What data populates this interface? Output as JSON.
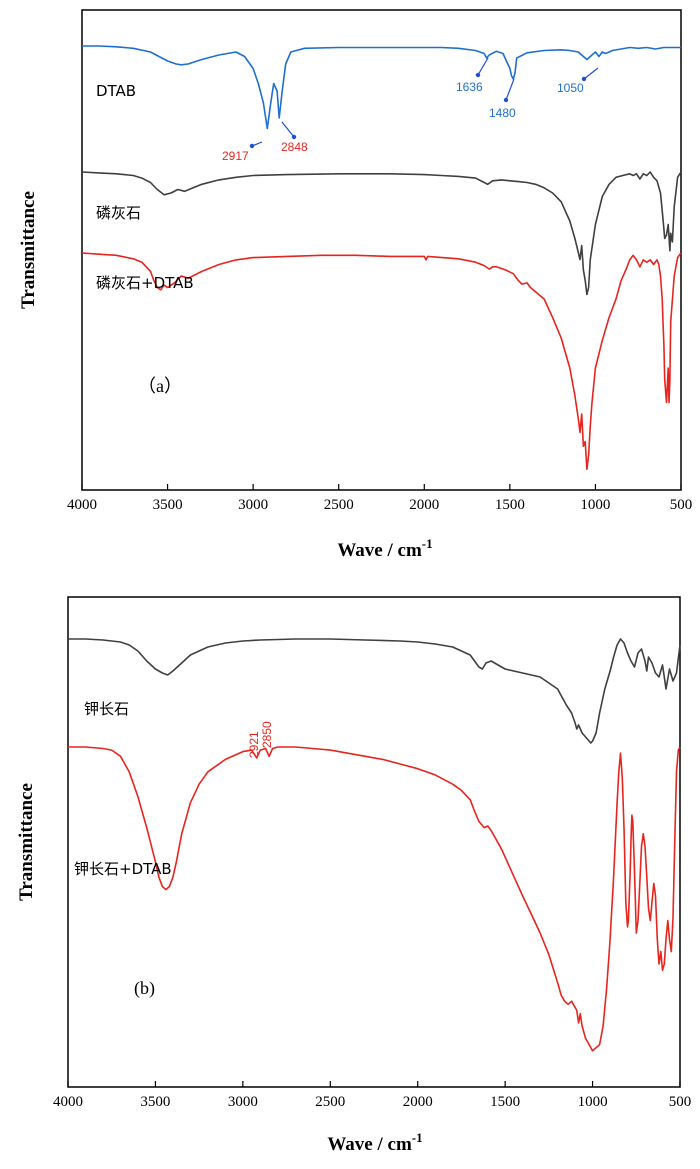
{
  "chart_data": [
    {
      "type": "line",
      "panel_label": "（a）",
      "xlabel": "Wave / cm",
      "xlabel_sup": "-1",
      "ylabel": "Transmittance",
      "xlim": [
        4000,
        500
      ],
      "xticks": [
        4000,
        3500,
        3000,
        2500,
        2000,
        1500,
        1000,
        500
      ],
      "grid": false,
      "series": [
        {
          "name": "DTAB",
          "color": "#1f6fd1",
          "x": [
            4000,
            3900,
            3800,
            3700,
            3600,
            3550,
            3500,
            3450,
            3420,
            3380,
            3300,
            3200,
            3100,
            3050,
            3000,
            2970,
            2940,
            2917,
            2900,
            2880,
            2860,
            2848,
            2830,
            2810,
            2780,
            2700,
            2500,
            2300,
            2100,
            1900,
            1800,
            1700,
            1650,
            1636,
            1620,
            1580,
            1540,
            1500,
            1490,
            1480,
            1470,
            1460,
            1400,
            1300,
            1200,
            1150,
            1100,
            1080,
            1050,
            1030,
            1000,
            980,
            960,
            940,
            900,
            850,
            800,
            750,
            700,
            650,
            600,
            550,
            500
          ],
          "y": [
            100,
            100,
            99.5,
            98.5,
            96,
            93,
            90,
            88,
            87.5,
            88,
            91,
            94,
            96,
            93,
            85,
            75,
            62,
            45,
            60,
            75,
            70,
            52,
            70,
            88,
            96,
            98.5,
            99,
            99,
            99,
            99,
            98.5,
            97,
            95,
            92,
            94,
            96.5,
            95,
            85,
            80,
            78,
            82,
            92,
            95.5,
            97,
            97.5,
            97,
            96,
            94,
            91,
            93,
            96,
            93,
            96,
            95,
            97,
            98,
            99,
            98.5,
            99,
            98,
            99,
            99,
            99
          ]
        },
        {
          "name": "磷灰石",
          "color": "#404040",
          "x": [
            4000,
            3900,
            3800,
            3700,
            3650,
            3600,
            3560,
            3520,
            3480,
            3440,
            3400,
            3350,
            3300,
            3200,
            3100,
            3000,
            2800,
            2500,
            2200,
            2000,
            1900,
            1800,
            1700,
            1650,
            1630,
            1600,
            1550,
            1500,
            1450,
            1400,
            1350,
            1300,
            1250,
            1200,
            1150,
            1120,
            1100,
            1090,
            1080,
            1070,
            1060,
            1050,
            1040,
            1030,
            1000,
            960,
            920,
            880,
            840,
            800,
            780,
            760,
            740,
            720,
            700,
            680,
            660,
            640,
            620,
            610,
            602,
            595,
            585,
            575,
            565,
            560,
            550,
            540,
            520,
            500
          ],
          "y": [
            100,
            99.5,
            99,
            98,
            96.5,
            94,
            90,
            87,
            88,
            90,
            89,
            91,
            93,
            95.5,
            97,
            98,
            98.5,
            99,
            99,
            98.5,
            98,
            97.5,
            96.5,
            94,
            93,
            95,
            95.5,
            95,
            94.5,
            94,
            93,
            91,
            88,
            83,
            72,
            62,
            54,
            50,
            58,
            44,
            38,
            30,
            34,
            50,
            70,
            86,
            93,
            97,
            98,
            99,
            98,
            99,
            96,
            99,
            98,
            100,
            97,
            95,
            88,
            78,
            70,
            62,
            64,
            70,
            55,
            65,
            60,
            80,
            97,
            100
          ]
        },
        {
          "name": "磷灰石+DTAB",
          "color": "#e8241e",
          "x": [
            4000,
            3900,
            3800,
            3700,
            3650,
            3600,
            3580,
            3560,
            3540,
            3520,
            3500,
            3460,
            3420,
            3380,
            3300,
            3200,
            3100,
            3000,
            2800,
            2600,
            2400,
            2200,
            2000,
            1990,
            1980,
            1800,
            1700,
            1650,
            1620,
            1600,
            1580,
            1560,
            1520,
            1480,
            1450,
            1430,
            1400,
            1380,
            1300,
            1250,
            1200,
            1150,
            1120,
            1100,
            1090,
            1080,
            1070,
            1060,
            1050,
            1040,
            1030,
            1020,
            1000,
            960,
            920,
            880,
            850,
            820,
            800,
            780,
            760,
            740,
            720,
            700,
            680,
            660,
            640,
            630,
            620,
            610,
            605,
            600,
            595,
            590,
            585,
            580,
            575,
            570,
            565,
            560,
            540,
            520,
            500
          ],
          "y": [
            100,
            99.5,
            99,
            97.5,
            96,
            92,
            88,
            85,
            84,
            86,
            85,
            87,
            90,
            89,
            92,
            95,
            97,
            98,
            98.5,
            99,
            99,
            98.5,
            98.5,
            97,
            98.5,
            97.5,
            96,
            94.5,
            93,
            94,
            94,
            93.5,
            92.5,
            91,
            88,
            86.5,
            87,
            85,
            80,
            72,
            63,
            50,
            38,
            28,
            22,
            30,
            16,
            18,
            6,
            12,
            25,
            35,
            50,
            62,
            72,
            80,
            88,
            93,
            97,
            99,
            97,
            94,
            97,
            96,
            97,
            95,
            97,
            95,
            90,
            80,
            70,
            60,
            45,
            40,
            35,
            42,
            50,
            35,
            45,
            70,
            90,
            98,
            100
          ]
        }
      ],
      "annotations": [
        {
          "text": "2917",
          "x": 2917,
          "color": "#e8241e"
        },
        {
          "text": "2848",
          "x": 2848,
          "color": "#e8241e"
        },
        {
          "text": "1636",
          "x": 1636,
          "color": "#1f6fd1"
        },
        {
          "text": "1480",
          "x": 1480,
          "color": "#1f6fd1"
        },
        {
          "text": "1050",
          "x": 1050,
          "color": "#1f6fd1"
        }
      ]
    },
    {
      "type": "line",
      "panel_label": "(b)",
      "xlabel": "Wave / cm",
      "xlabel_sup": "-1",
      "ylabel": "Transmittance",
      "xlim": [
        4000,
        500
      ],
      "xticks": [
        4000,
        3500,
        3000,
        2500,
        2000,
        1500,
        1000,
        500
      ],
      "grid": false,
      "series": [
        {
          "name": "钾长石",
          "color": "#404040",
          "x": [
            4000,
            3900,
            3800,
            3700,
            3650,
            3600,
            3550,
            3500,
            3460,
            3430,
            3400,
            3350,
            3300,
            3250,
            3200,
            3100,
            3000,
            2900,
            2700,
            2500,
            2300,
            2100,
            2000,
            1900,
            1800,
            1700,
            1650,
            1630,
            1610,
            1580,
            1540,
            1500,
            1400,
            1300,
            1200,
            1150,
            1120,
            1100,
            1090,
            1080,
            1060,
            1040,
            1020,
            1010,
            1000,
            980,
            960,
            930,
            900,
            880,
            860,
            840,
            820,
            800,
            780,
            760,
            740,
            720,
            700,
            690,
            680,
            660,
            640,
            620,
            600,
            590,
            580,
            560,
            540,
            520,
            500
          ],
          "y": [
            99,
            99,
            98.5,
            97.5,
            96,
            93,
            88,
            84,
            82,
            81,
            83,
            87,
            91,
            93,
            95,
            97,
            98,
            98.5,
            99,
            99,
            98.5,
            98,
            97.5,
            96.5,
            95,
            91,
            85,
            84,
            87,
            88,
            86,
            84,
            82,
            80,
            74,
            66,
            62,
            57,
            54,
            56,
            52,
            50,
            48,
            47,
            48,
            52,
            62,
            74,
            83,
            90,
            96,
            99,
            97,
            92,
            88,
            85,
            92,
            94,
            88,
            83,
            90,
            87,
            82,
            80,
            86,
            80,
            74,
            84,
            78,
            82,
            96
          ]
        },
        {
          "name": "钾长石+DTAB",
          "color": "#e8241e",
          "x": [
            4000,
            3900,
            3800,
            3750,
            3700,
            3650,
            3600,
            3550,
            3500,
            3480,
            3460,
            3440,
            3420,
            3400,
            3380,
            3350,
            3300,
            3250,
            3200,
            3100,
            3000,
            2950,
            2921,
            2900,
            2870,
            2850,
            2830,
            2800,
            2700,
            2600,
            2500,
            2400,
            2300,
            2200,
            2100,
            2000,
            1900,
            1800,
            1750,
            1700,
            1680,
            1650,
            1620,
            1600,
            1580,
            1560,
            1520,
            1480,
            1440,
            1400,
            1350,
            1300,
            1250,
            1200,
            1180,
            1160,
            1140,
            1120,
            1100,
            1090,
            1080,
            1070,
            1060,
            1040,
            1020,
            1000,
            980,
            960,
            940,
            920,
            900,
            880,
            860,
            850,
            840,
            830,
            820,
            810,
            800,
            795,
            790,
            785,
            780,
            775,
            770,
            760,
            750,
            740,
            730,
            720,
            710,
            700,
            690,
            680,
            670,
            660,
            650,
            640,
            630,
            620,
            610,
            600,
            590,
            580,
            570,
            560,
            550,
            540,
            530,
            520,
            510,
            500
          ],
          "y": [
            100,
            100,
            99.5,
            99,
            97,
            92,
            84,
            74,
            63,
            58,
            55,
            54,
            55,
            58,
            63,
            72,
            82,
            88,
            92,
            96,
            98.5,
            99,
            96.5,
            99,
            99.5,
            97,
            99.5,
            100,
            100,
            99.5,
            99,
            98,
            97,
            96,
            94.5,
            93,
            91,
            88,
            86,
            83,
            80,
            76,
            74,
            74.5,
            73,
            71,
            67,
            62,
            57,
            52,
            46,
            40,
            33,
            24,
            20,
            18,
            17,
            18,
            16,
            15,
            11,
            14,
            10,
            6,
            4,
            2,
            3,
            4,
            10,
            22,
            38,
            58,
            82,
            92,
            98,
            90,
            74,
            50,
            42,
            44,
            52,
            60,
            70,
            78,
            76,
            60,
            40,
            44,
            56,
            68,
            72,
            68,
            58,
            48,
            44,
            50,
            56,
            52,
            38,
            30,
            34,
            28,
            30,
            38,
            44,
            38,
            34,
            45,
            70,
            92,
            99,
            100
          ]
        }
      ],
      "annotations": [
        {
          "text": "2921",
          "x": 2921,
          "color": "#e8241e"
        },
        {
          "text": "2850",
          "x": 2850,
          "color": "#e8241e"
        }
      ]
    }
  ]
}
